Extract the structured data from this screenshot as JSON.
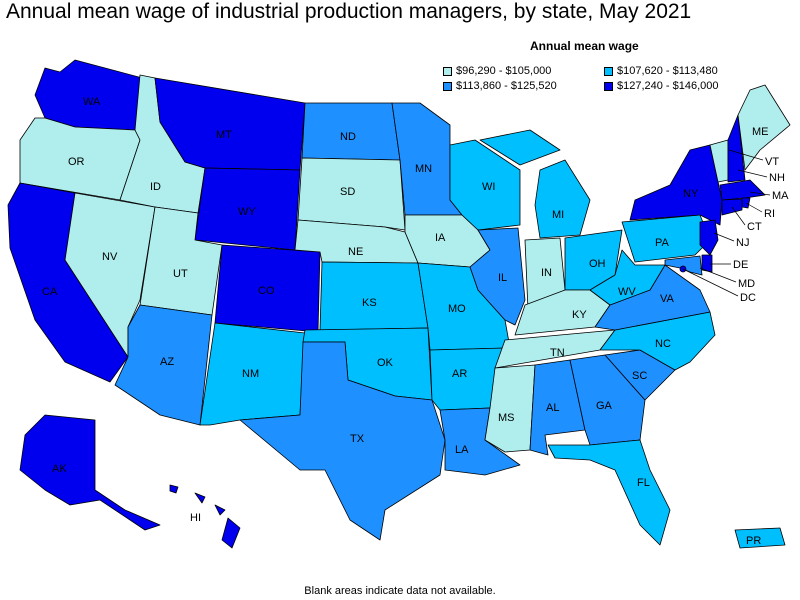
{
  "title": "Annual mean wage of industrial production managers, by state, May 2021",
  "legend": {
    "title": "Annual mean wage",
    "items": [
      {
        "label": "$96,290 - $105,000",
        "color": "#b0eded"
      },
      {
        "label": "$107,620 - $113,480",
        "color": "#00bfff"
      },
      {
        "label": "$113,860 - $125,520",
        "color": "#1e90ff"
      },
      {
        "label": "$127,240 - $146,000",
        "color": "#0000ee"
      }
    ]
  },
  "states": {
    "WA": 3,
    "OR": 0,
    "CA": 3,
    "NV": 0,
    "ID": 0,
    "MT": 3,
    "WY": 3,
    "UT": 0,
    "AZ": 2,
    "CO": 3,
    "NM": 1,
    "ND": 2,
    "SD": 0,
    "NE": 0,
    "KS": 1,
    "OK": 1,
    "TX": 2,
    "MN": 2,
    "IA": 0,
    "MO": 1,
    "AR": 1,
    "LA": 2,
    "WI": 1,
    "IL": 2,
    "MI": 1,
    "IN": 0,
    "OH": 1,
    "KY": 0,
    "TN": 0,
    "MS": 0,
    "AL": 2,
    "GA": 2,
    "FL": 1,
    "SC": 2,
    "NC": 1,
    "VA": 2,
    "WV": 1,
    "PA": 1,
    "NY": 3,
    "VT": 0,
    "NH": 3,
    "ME": 0,
    "MA": 3,
    "RI": 3,
    "CT": 3,
    "NJ": 3,
    "DE": 3,
    "MD": 2,
    "DC": 3,
    "AK": 3,
    "HI": 3,
    "PR": 1
  },
  "state_labels": [
    "WA",
    "OR",
    "CA",
    "NV",
    "ID",
    "MT",
    "WY",
    "UT",
    "AZ",
    "CO",
    "NM",
    "ND",
    "SD",
    "NE",
    "KS",
    "OK",
    "TX",
    "MN",
    "IA",
    "MO",
    "AR",
    "LA",
    "WI",
    "IL",
    "MI",
    "IN",
    "OH",
    "KY",
    "TN",
    "MS",
    "AL",
    "GA",
    "FL",
    "SC",
    "NC",
    "VA",
    "WV",
    "PA",
    "NY",
    "VT",
    "NH",
    "ME",
    "MA",
    "RI",
    "CT",
    "NJ",
    "DE",
    "MD",
    "DC",
    "AK",
    "HI",
    "PR"
  ],
  "footnote": "Blank areas indicate data not available."
}
